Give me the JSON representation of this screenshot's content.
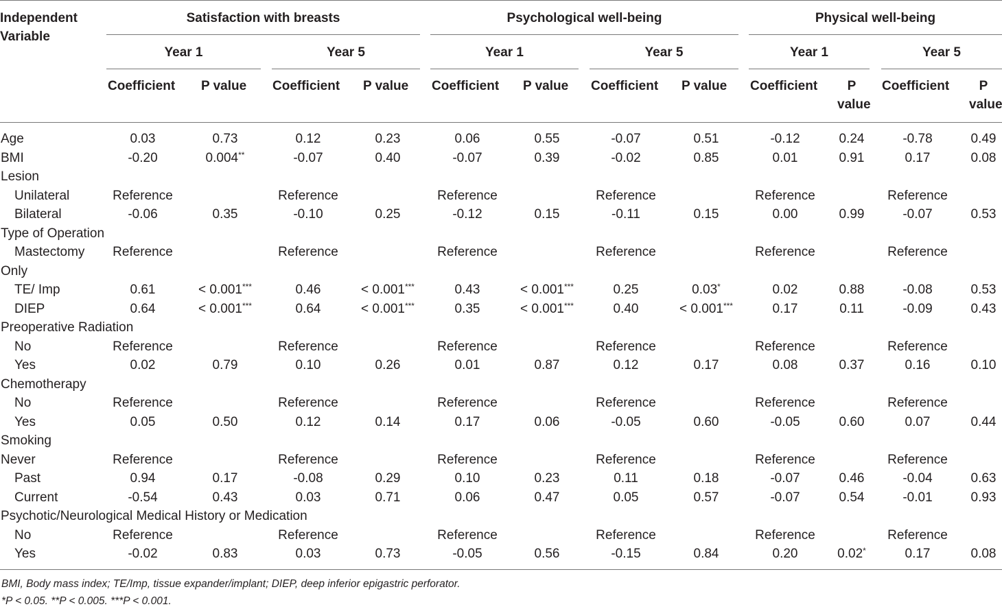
{
  "table": {
    "header": {
      "independent_variable": "Independent Variable",
      "outcomes": [
        "Satisfaction with breasts",
        "Psychological well-being",
        "Physical well-being"
      ],
      "years": [
        "Year 1",
        "Year 5",
        "Year 1",
        "Year 5",
        "Year 1",
        "Year 5"
      ],
      "stats": [
        "Coefficient",
        "P value",
        "Coefficient",
        "P value",
        "Coefficient",
        "P value",
        "Coefficient",
        "P value",
        "Coefficient",
        "P value",
        "Coefficient",
        "P value"
      ]
    },
    "rows": [
      {
        "label": "Age",
        "indent": false,
        "cells": [
          "0.03",
          "0.73",
          "0.12",
          "0.23",
          "0.06",
          "0.55",
          "-0.07",
          "0.51",
          "-0.12",
          "0.24",
          "-0.78",
          "0.49"
        ]
      },
      {
        "label": "BMI",
        "indent": false,
        "cells": [
          "-0.20",
          "0.004**",
          "-0.07",
          "0.40",
          "-0.07",
          "0.39",
          "-0.02",
          "0.85",
          "0.01",
          "0.91",
          "0.17",
          "0.08"
        ]
      },
      {
        "label": "Lesion",
        "indent": false,
        "cells": []
      },
      {
        "label": "Unilateral",
        "indent": true,
        "cells": [
          "Reference",
          "",
          "Reference",
          "",
          "Reference",
          "",
          "Reference",
          "",
          "Reference",
          "",
          "Reference",
          ""
        ]
      },
      {
        "label": "Bilateral",
        "indent": true,
        "cells": [
          "-0.06",
          "0.35",
          "-0.10",
          "0.25",
          "-0.12",
          "0.15",
          "-0.11",
          "0.15",
          "0.00",
          "0.99",
          "-0.07",
          "0.53"
        ]
      },
      {
        "label": "Type of Operation",
        "indent": false,
        "cells": []
      },
      {
        "label": "Mastectomy",
        "indent": true,
        "cells": [
          "Reference",
          "",
          "Reference",
          "",
          "Reference",
          "",
          "Reference",
          "",
          "Reference",
          "",
          "Reference",
          ""
        ]
      },
      {
        "label": "Only",
        "indent": false,
        "cells": []
      },
      {
        "label": "TE/ Imp",
        "indent": true,
        "cells": [
          "0.61",
          "< 0.001***",
          "0.46",
          "< 0.001***",
          "0.43",
          "< 0.001***",
          "0.25",
          "0.03*",
          "0.02",
          "0.88",
          "-0.08",
          "0.53"
        ]
      },
      {
        "label": "DIEP",
        "indent": true,
        "cells": [
          "0.64",
          "< 0.001***",
          "0.64",
          "< 0.001***",
          "0.35",
          "< 0.001***",
          "0.40",
          "< 0.001***",
          "0.17",
          "0.11",
          "-0.09",
          "0.43"
        ]
      },
      {
        "label": "Preoperative Radiation",
        "indent": false,
        "cells": []
      },
      {
        "label": "No",
        "indent": true,
        "cells": [
          "Reference",
          "",
          "Reference",
          "",
          "Reference",
          "",
          "Reference",
          "",
          "Reference",
          "",
          "Reference",
          ""
        ]
      },
      {
        "label": "Yes",
        "indent": true,
        "cells": [
          "0.02",
          "0.79",
          "0.10",
          "0.26",
          "0.01",
          "0.87",
          "0.12",
          "0.17",
          "0.08",
          "0.37",
          "0.16",
          "0.10"
        ]
      },
      {
        "label": "Chemotherapy",
        "indent": false,
        "cells": []
      },
      {
        "label": "No",
        "indent": true,
        "cells": [
          "Reference",
          "",
          "Reference",
          "",
          "Reference",
          "",
          "Reference",
          "",
          "Reference",
          "",
          "Reference",
          ""
        ]
      },
      {
        "label": "Yes",
        "indent": true,
        "cells": [
          "0.05",
          "0.50",
          "0.12",
          "0.14",
          "0.17",
          "0.06",
          "-0.05",
          "0.60",
          "-0.05",
          "0.60",
          "0.07",
          "0.44"
        ]
      },
      {
        "label": "Smoking",
        "indent": false,
        "cells": []
      },
      {
        "label": "Never",
        "indent": false,
        "cells": [
          "Reference",
          "",
          "Reference",
          "",
          "Reference",
          "",
          "Reference",
          "",
          "Reference",
          "",
          "Reference",
          ""
        ]
      },
      {
        "label": "Past",
        "indent": true,
        "cells": [
          "0.94",
          "0.17",
          "-0.08",
          "0.29",
          "0.10",
          "0.23",
          "0.11",
          "0.18",
          "-0.07",
          "0.46",
          "-0.04",
          "0.63"
        ]
      },
      {
        "label": "Current",
        "indent": true,
        "cells": [
          "-0.54",
          "0.43",
          "0.03",
          "0.71",
          "0.06",
          "0.47",
          "0.05",
          "0.57",
          "-0.07",
          "0.54",
          "-0.01",
          "0.93"
        ]
      },
      {
        "label": "Psychotic/Neurological Medical History or Medication",
        "indent": false,
        "cells": []
      },
      {
        "label": "No",
        "indent": true,
        "cells": [
          "Reference",
          "",
          "Reference",
          "",
          "Reference",
          "",
          "Reference",
          "",
          "Reference",
          "",
          "Reference",
          ""
        ]
      },
      {
        "label": "Yes",
        "indent": true,
        "cells": [
          "-0.02",
          "0.83",
          "0.03",
          "0.73",
          "-0.05",
          "0.56",
          "-0.15",
          "0.84",
          "0.20",
          "0.02*",
          "0.17",
          "0.08"
        ]
      }
    ]
  },
  "footnotes": [
    "BMI, Body mass index; TE/Imp, tissue expander/implant; DIEP, deep inferior epigastric perforator.",
    "*P < 0.05. **P < 0.005. ***P < 0.001."
  ]
}
